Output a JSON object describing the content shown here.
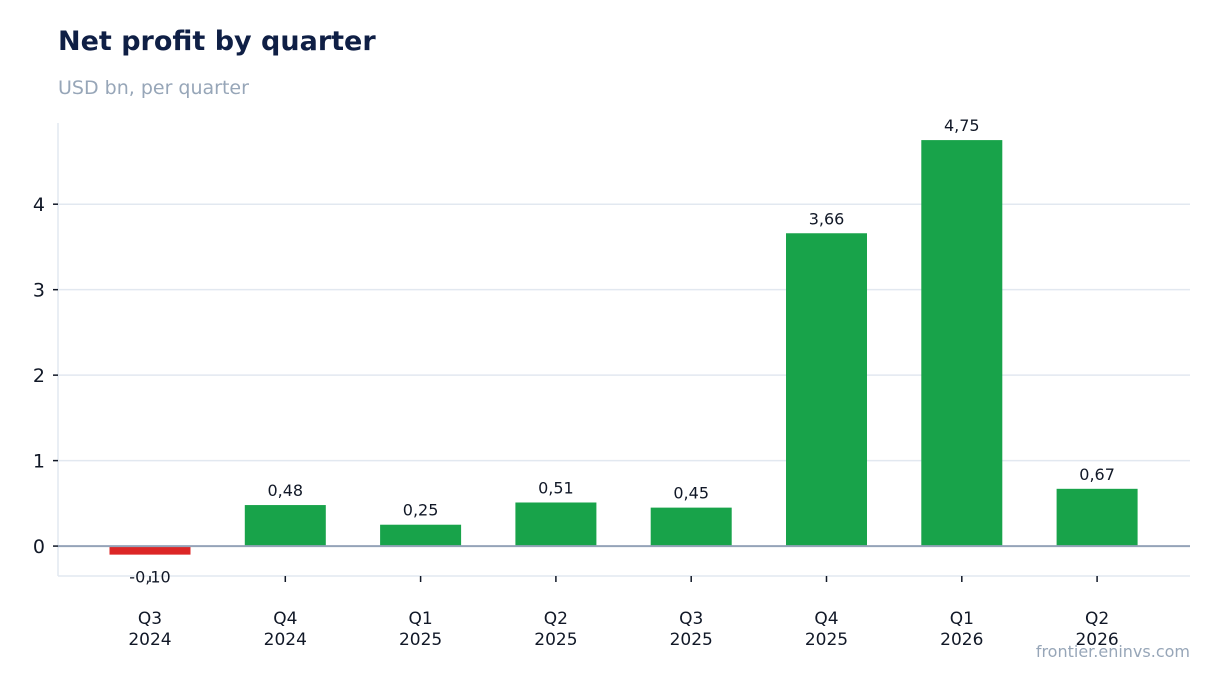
{
  "title": "Net profit by quarter",
  "subtitle": "USD bn, per quarter",
  "source": "frontier.eninvs.com",
  "colors": {
    "positive": "#18a34a",
    "negative": "#dc2626",
    "grid": "#e2e8f0",
    "zero_line": "#94a3b8",
    "text": "#111827"
  },
  "chart_data": {
    "type": "bar",
    "title": "Net profit by quarter",
    "subtitle": "USD bn, per quarter",
    "categories": [
      [
        "Q3",
        "2024"
      ],
      [
        "Q4",
        "2024"
      ],
      [
        "Q1",
        "2025"
      ],
      [
        "Q2",
        "2025"
      ],
      [
        "Q3",
        "2025"
      ],
      [
        "Q4",
        "2025"
      ],
      [
        "Q1",
        "2026"
      ],
      [
        "Q2",
        "2026"
      ]
    ],
    "values": [
      -0.1,
      0.48,
      0.25,
      0.51,
      0.45,
      3.66,
      4.75,
      0.67
    ],
    "data_labels": [
      "-0,10",
      "0,48",
      "0,25",
      "0,51",
      "0,45",
      "3,66",
      "4,75",
      "0,67"
    ],
    "y_ticks": [
      0,
      1,
      2,
      3,
      4
    ],
    "ylim": [
      -0.35,
      4.95
    ],
    "grid": true
  }
}
